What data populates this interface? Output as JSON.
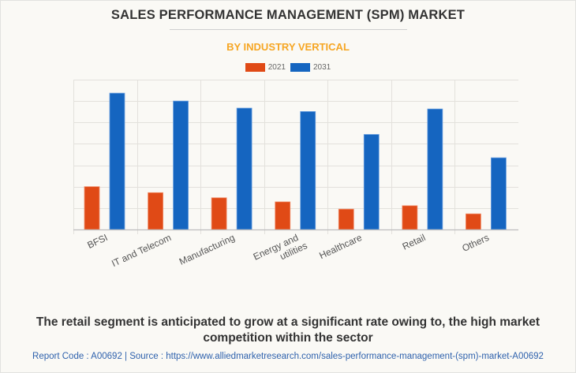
{
  "header": {
    "title": "SALES PERFORMANCE MANAGEMENT (SPM) MARKET",
    "subtitle": "BY INDUSTRY VERTICAL"
  },
  "colors": {
    "title": "#333333",
    "subtitle": "#f6a623",
    "series_2021": "#e04a16",
    "series_2031": "#1565c0",
    "footer": "#2f62ad"
  },
  "chart_data": {
    "type": "bar",
    "title": "SALES PERFORMANCE MANAGEMENT (SPM) MARKET",
    "subtitle": "BY INDUSTRY VERTICAL",
    "xlabel": "",
    "ylabel": "",
    "categories": [
      "BFSI",
      "IT and Telecom",
      "Manufacturing",
      "Energy and utilities",
      "Healthcare",
      "Retail",
      "Others"
    ],
    "category_label_lines": [
      [
        "BFSI"
      ],
      [
        "IT and Telecom"
      ],
      [
        "Manufacturing"
      ],
      [
        "Energy and",
        "utilities"
      ],
      [
        "Healthcare"
      ],
      [
        "Retail"
      ],
      [
        "Others"
      ]
    ],
    "series": [
      {
        "name": "2021",
        "color": "#e04a16",
        "values": [
          2.0,
          1.72,
          1.48,
          1.29,
          0.95,
          1.11,
          0.73
        ]
      },
      {
        "name": "2031",
        "color": "#1565c0",
        "values": [
          6.37,
          6.0,
          5.67,
          5.51,
          4.44,
          5.63,
          3.35
        ]
      }
    ],
    "ylim": [
      0,
      7
    ],
    "y_ticks_shown": false,
    "value_units": "relative (gridline units; no axis values shown)",
    "grid": true,
    "legend": {
      "position": "top-center",
      "entries": [
        "2021",
        "2031"
      ]
    }
  },
  "caption": "The retail segment is anticipated to grow at a significant rate owing to, the high market competition within the sector",
  "footer": "Report Code : A00692  |  Source : https://www.alliedmarketresearch.com/sales-performance-management-(spm)-market-A00692"
}
